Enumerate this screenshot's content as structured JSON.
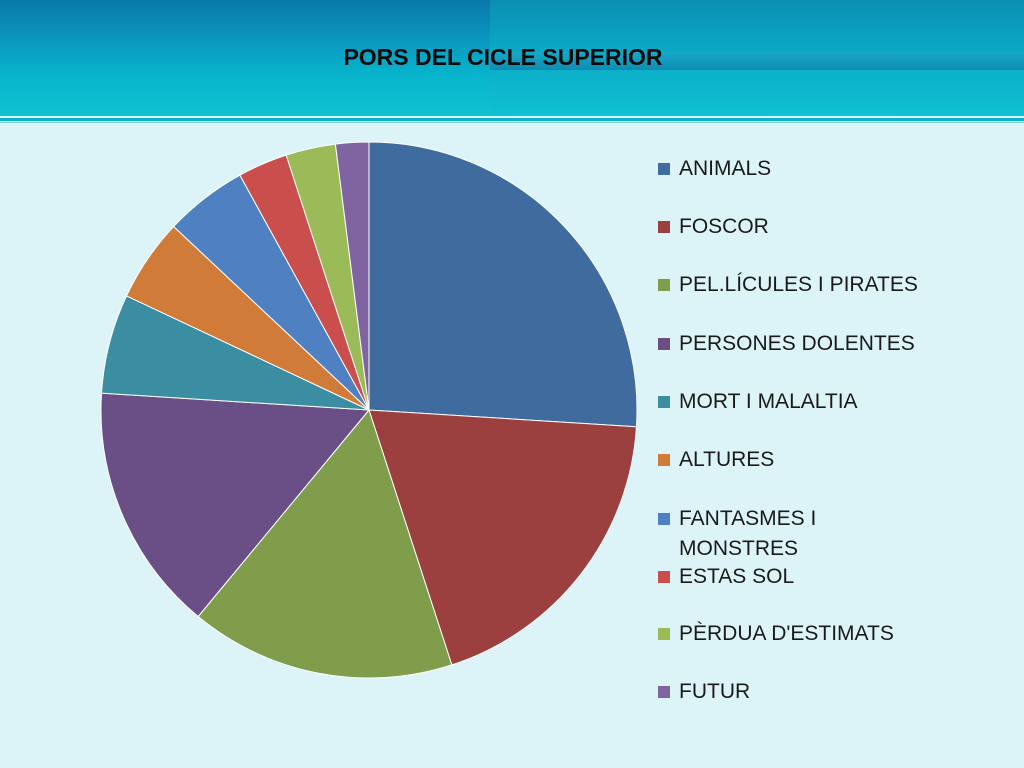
{
  "slide": {
    "title": "PORS DEL CICLE SUPERIOR"
  },
  "chart_data": {
    "type": "pie",
    "title": "PORS DEL CICLE SUPERIOR",
    "legend_position": "right",
    "slices": [
      {
        "label": "ANIMALS",
        "value": 26,
        "color": "#406b9e"
      },
      {
        "label": "FOSCOR",
        "value": 19,
        "color": "#9b403f"
      },
      {
        "label": "PEL.LÍCULES I PIRATES",
        "value": 16,
        "color": "#809d4b"
      },
      {
        "label": "PERSONES DOLENTES",
        "value": 15,
        "color": "#6a4f86"
      },
      {
        "label": "MORT I MALALTIA",
        "value": 6,
        "color": "#3b8ea2"
      },
      {
        "label": "ALTURES",
        "value": 5,
        "color": "#d07c38"
      },
      {
        "label": "FANTASMES I MONSTRES",
        "value": 5,
        "color": "#4e80c2"
      },
      {
        "label": "ESTAS SOL",
        "value": 3,
        "color": "#c94e4c"
      },
      {
        "label": "PÈRDUA D'ESTIMATS",
        "value": 3,
        "color": "#9bbb59"
      },
      {
        "label": "FUTUR",
        "value": 2,
        "color": "#8064a2"
      }
    ]
  }
}
